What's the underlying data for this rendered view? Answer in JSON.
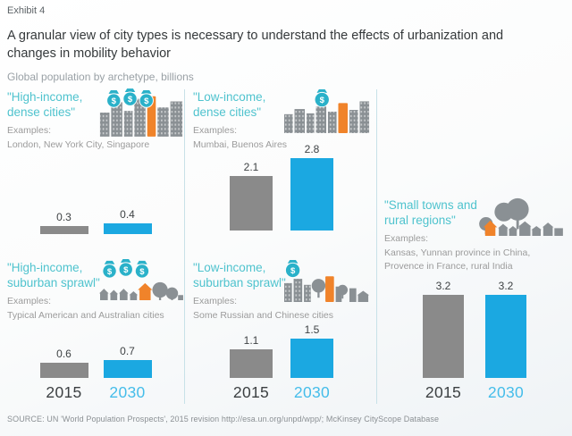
{
  "exhibit_label": "Exhibit 4",
  "title": "A granular view of city types is necessary to understand the effects of urbanization and changes in mobility behavior",
  "subtitle": "Global population by archetype, billions",
  "source": "SOURCE: UN 'World Population Prospects', 2015 revision http://esa.un.org/unpd/wpp/; McKinsey CityScope Database",
  "colors": {
    "bar_2015": "#8a8a8a",
    "bar_2030": "#1ba8e1",
    "year_2015": "#3c4042",
    "year_2030": "#45bdea",
    "panel_title": "#4fc3ce",
    "accent_orange": "#f0832a",
    "money_bag_teal": "#2ab1c9"
  },
  "chart_data": {
    "type": "bar",
    "unit": "billions",
    "categories": [
      "2015",
      "2030"
    ],
    "series_colors": {
      "2015": "#8a8a8a",
      "2030": "#1ba8e1"
    },
    "panels": [
      {
        "title": "\"High-income, dense cities\"",
        "examples_label": "Examples:",
        "examples": "London, New York City, Singapore",
        "icon": "money-bags-3-dense-city",
        "values": [
          0.3,
          0.4
        ]
      },
      {
        "title": "\"Low-income, dense cities\"",
        "examples_label": "Examples:",
        "examples": "Mumbai, Buenos Aires",
        "icon": "money-bag-1-dense-city",
        "values": [
          2.1,
          2.8
        ]
      },
      {
        "title": "\"High-income, suburban sprawl\"",
        "examples_label": "Examples:",
        "examples": "Typical American and Australian cities",
        "icon": "money-bags-3-suburban",
        "values": [
          0.6,
          0.7
        ]
      },
      {
        "title": "\"Low-income, suburban sprawl\"",
        "examples_label": "Examples:",
        "examples": "Some Russian and Chinese cities",
        "icon": "money-bag-1-suburban",
        "values": [
          1.1,
          1.5
        ]
      },
      {
        "title": "\"Small towns and rural regions\"",
        "examples_label": "Examples:",
        "examples": "Kansas, Yunnan province in China, Provence in France, rural India",
        "icon": "trees-and-houses",
        "values": [
          3.2,
          3.2
        ]
      }
    ]
  }
}
